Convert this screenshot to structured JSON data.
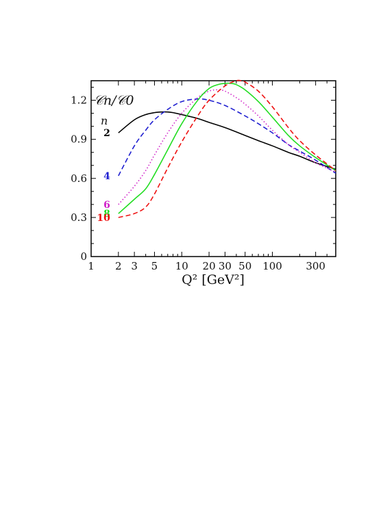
{
  "chart_data": {
    "type": "line",
    "xlabel": "Q² [GeV²]",
    "ylabel": "𝒞n/𝒞0",
    "legend_header": "n",
    "x_scale": "log",
    "xlim": [
      1,
      500
    ],
    "ylim": [
      0,
      1.35
    ],
    "x_ticks": [
      1,
      2,
      3,
      5,
      10,
      20,
      30,
      50,
      100,
      300
    ],
    "x_tick_labels": [
      "1",
      "2",
      "3",
      "5",
      "10",
      "20",
      "30",
      "50",
      "100",
      "300"
    ],
    "y_ticks": [
      0,
      0.3,
      0.6,
      0.9,
      1.2
    ],
    "y_tick_labels": [
      "0",
      "0.3",
      "0.6",
      "0.9",
      "1.2"
    ],
    "grid": false,
    "series": [
      {
        "name": "2",
        "color": "#000000",
        "style": "solid",
        "x": [
          2,
          3,
          4,
          5,
          6,
          7,
          8,
          10,
          15,
          20,
          30,
          50,
          70,
          100,
          150,
          200,
          300,
          500
        ],
        "y": [
          0.95,
          1.05,
          1.09,
          1.105,
          1.11,
          1.11,
          1.105,
          1.09,
          1.06,
          1.03,
          0.99,
          0.93,
          0.89,
          0.85,
          0.8,
          0.77,
          0.72,
          0.67
        ]
      },
      {
        "name": "4",
        "color": "#1f1fd0",
        "style": "dashed",
        "x": [
          2,
          3,
          4,
          5,
          7,
          10,
          15,
          20,
          30,
          50,
          70,
          100,
          150,
          200,
          300,
          500
        ],
        "y": [
          0.62,
          0.85,
          0.97,
          1.05,
          1.13,
          1.19,
          1.21,
          1.2,
          1.16,
          1.08,
          1.02,
          0.95,
          0.86,
          0.81,
          0.74,
          0.64
        ]
      },
      {
        "name": "6",
        "color": "#d020c8",
        "style": "dotted",
        "x": [
          2,
          3,
          4,
          5,
          7,
          10,
          15,
          20,
          25,
          30,
          40,
          50,
          70,
          100,
          150,
          200,
          300,
          500
        ],
        "y": [
          0.4,
          0.54,
          0.66,
          0.78,
          0.95,
          1.1,
          1.22,
          1.27,
          1.28,
          1.27,
          1.22,
          1.17,
          1.08,
          0.97,
          0.86,
          0.8,
          0.72,
          0.65
        ]
      },
      {
        "name": "8",
        "color": "#22dd22",
        "style": "solid",
        "x": [
          2,
          3,
          4,
          5,
          7,
          10,
          15,
          20,
          25,
          30,
          35,
          40,
          50,
          70,
          100,
          150,
          200,
          300,
          500
        ],
        "y": [
          0.33,
          0.44,
          0.52,
          0.63,
          0.82,
          1.02,
          1.2,
          1.29,
          1.32,
          1.33,
          1.33,
          1.32,
          1.28,
          1.19,
          1.07,
          0.93,
          0.85,
          0.76,
          0.66
        ]
      },
      {
        "name": "10",
        "color": "#ee1111",
        "style": "dashed",
        "x": [
          2,
          3,
          4,
          5,
          7,
          10,
          15,
          20,
          30,
          40,
          45,
          50,
          70,
          100,
          150,
          200,
          300,
          500
        ],
        "y": [
          0.3,
          0.33,
          0.38,
          0.48,
          0.68,
          0.88,
          1.08,
          1.2,
          1.31,
          1.35,
          1.35,
          1.34,
          1.27,
          1.15,
          0.99,
          0.89,
          0.78,
          0.66
        ]
      }
    ]
  }
}
